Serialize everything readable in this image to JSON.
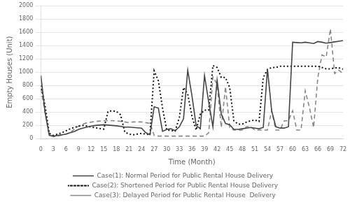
{
  "chart_data": {
    "type": "line",
    "xlabel": "Time (Month)",
    "ylabel": "Empty Houses (Unit)",
    "xlim": [
      0,
      72
    ],
    "ylim": [
      0,
      2000
    ],
    "xticks": [
      0,
      3,
      6,
      9,
      12,
      15,
      18,
      21,
      24,
      27,
      30,
      33,
      36,
      39,
      42,
      45,
      48,
      51,
      54,
      57,
      60,
      63,
      66,
      69,
      72
    ],
    "yticks": [
      0,
      200,
      400,
      600,
      800,
      1000,
      1200,
      1400,
      1600,
      1800,
      2000
    ],
    "grid": "y",
    "legend": "bottom",
    "x": [
      0,
      1,
      2,
      3,
      4,
      5,
      6,
      7,
      8,
      9,
      10,
      11,
      12,
      13,
      14,
      15,
      16,
      17,
      18,
      19,
      20,
      21,
      22,
      23,
      24,
      25,
      26,
      27,
      28,
      29,
      30,
      31,
      32,
      33,
      34,
      35,
      36,
      37,
      38,
      39,
      40,
      41,
      42,
      43,
      44,
      45,
      46,
      47,
      48,
      49,
      50,
      51,
      52,
      53,
      54,
      55,
      56,
      57,
      58,
      59,
      60,
      61,
      62,
      63,
      64,
      65,
      66,
      67,
      68,
      69,
      70,
      71,
      72
    ],
    "series": [
      {
        "name": "Case(1): Normal Period for Public Rental House Delivery",
        "color": "#444444",
        "line_style": "solid",
        "values": [
          950,
          400,
          50,
          40,
          50,
          60,
          70,
          90,
          110,
          140,
          160,
          175,
          190,
          200,
          205,
          210,
          205,
          200,
          195,
          185,
          175,
          175,
          170,
          165,
          160,
          90,
          60,
          480,
          460,
          110,
          140,
          150,
          120,
          180,
          300,
          1030,
          650,
          200,
          150,
          950,
          550,
          180,
          880,
          370,
          230,
          210,
          140,
          140,
          150,
          160,
          170,
          160,
          150,
          170,
          1050,
          420,
          180,
          160,
          160,
          180,
          1450,
          1445,
          1440,
          1450,
          1440,
          1430,
          1460,
          1450,
          1435,
          1445,
          1455,
          1465,
          1475
        ]
      },
      {
        "name": "Case(2): Shortened Period for Public Rental House Delivery",
        "color": "#111111",
        "line_style": "dotted",
        "values": [
          800,
          500,
          80,
          50,
          70,
          90,
          120,
          150,
          170,
          190,
          200,
          190,
          175,
          165,
          155,
          145,
          410,
          420,
          410,
          360,
          100,
          70,
          60,
          70,
          80,
          70,
          60,
          1020,
          870,
          460,
          130,
          125,
          115,
          320,
          770,
          670,
          340,
          130,
          370,
          430,
          430,
          1100,
          1070,
          920,
          920,
          770,
          270,
          220,
          220,
          250,
          270,
          280,
          260,
          920,
          1040,
          1070,
          1070,
          1090,
          1090,
          1090,
          1090,
          1090,
          1090,
          1090,
          1090,
          1090,
          1090,
          1070,
          1050,
          1050,
          1065,
          1065,
          1045
        ]
      },
      {
        "name": "Case(3): Delayed Period for Public Rental House  Delivery",
        "color": "#888888",
        "line_style": "dashed",
        "values": [
          750,
          400,
          60,
          30,
          40,
          55,
          70,
          95,
          145,
          190,
          220,
          240,
          250,
          260,
          265,
          270,
          272,
          272,
          268,
          262,
          252,
          242,
          252,
          252,
          252,
          242,
          232,
          50,
          40,
          40,
          40,
          40,
          40,
          40,
          40,
          40,
          40,
          40,
          40,
          40,
          90,
          930,
          820,
          170,
          780,
          170,
          130,
          130,
          130,
          180,
          180,
          130,
          130,
          130,
          130,
          420,
          130,
          130,
          270,
          270,
          420,
          130,
          130,
          720,
          470,
          170,
          920,
          1260,
          1230,
          1650,
          980,
          1030,
          980
        ]
      }
    ]
  }
}
